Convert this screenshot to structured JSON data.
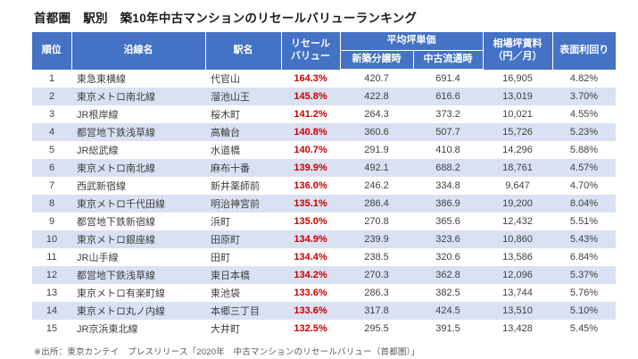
{
  "page_title": "首都圏　駅別　築10年中古マンションのリセールバリューランキング",
  "source_note": "※出所：東京カンテイ　プレスリリース「2020年　中古マンションのリセールバリュー（首都圏）」",
  "colors": {
    "header_bg": "#4472c4",
    "header_text": "#ffffff",
    "row_alt_bg": "#d9e1f2",
    "resale_red": "#c80000",
    "body_text": "#404040"
  },
  "table": {
    "headers": {
      "rank": "順位",
      "line": "沿線名",
      "station": "駅名",
      "resale_line1": "リセール",
      "resale_line2": "バリュー",
      "avg_tsubo_price": "平均坪単価",
      "new_sale": "新築分譲時",
      "used_market": "中古流通時",
      "rent_line1": "相場坪賃料",
      "rent_line2": "（円／月）",
      "yield": "表面利回り"
    }
  },
  "chart_data": {
    "type": "table",
    "title": "首都圏　駅別　築10年中古マンションのリセールバリューランキング",
    "columns": [
      "順位",
      "沿線名",
      "駅名",
      "リセールバリュー",
      "平均坪単価 新築分譲時",
      "平均坪単価 中古流通時",
      "相場坪賃料（円／月）",
      "表面利回り"
    ],
    "rows": [
      [
        "1",
        "東急東横線",
        "代官山",
        "164.3%",
        "420.7",
        "691.4",
        "16,905",
        "4.82%"
      ],
      [
        "2",
        "東京メトロ南北線",
        "溜池山王",
        "145.8%",
        "422.8",
        "616.6",
        "13,019",
        "3.70%"
      ],
      [
        "3",
        "JR根岸線",
        "桜木町",
        "141.2%",
        "264.3",
        "373.2",
        "10,021",
        "4.55%"
      ],
      [
        "4",
        "都営地下鉄浅草線",
        "高輪台",
        "140.8%",
        "360.6",
        "507.7",
        "15,726",
        "5.23%"
      ],
      [
        "5",
        "JR総武線",
        "水道橋",
        "140.7%",
        "291.9",
        "410.8",
        "14,296",
        "5.88%"
      ],
      [
        "6",
        "東京メトロ南北線",
        "麻布十番",
        "139.9%",
        "492.1",
        "688.2",
        "18,761",
        "4.57%"
      ],
      [
        "7",
        "西武新宿線",
        "新井薬師前",
        "136.0%",
        "246.2",
        "334.8",
        "9,647",
        "4.70%"
      ],
      [
        "8",
        "東京メトロ千代田線",
        "明治神宮前",
        "135.1%",
        "286.4",
        "386.9",
        "19,200",
        "8.04%"
      ],
      [
        "9",
        "都営地下鉄新宿線",
        "浜町",
        "135.0%",
        "270.8",
        "365.6",
        "12,432",
        "5.51%"
      ],
      [
        "10",
        "東京メトロ銀座線",
        "田原町",
        "134.9%",
        "239.9",
        "323.6",
        "10,860",
        "5.43%"
      ],
      [
        "11",
        "JR山手線",
        "田町",
        "134.4%",
        "238.5",
        "320.6",
        "13,586",
        "6.84%"
      ],
      [
        "12",
        "都営地下鉄浅草線",
        "東日本橋",
        "134.2%",
        "270.3",
        "362.8",
        "12,096",
        "5.37%"
      ],
      [
        "13",
        "東京メトロ有楽町線",
        "東池袋",
        "133.6%",
        "286.3",
        "382.5",
        "13,744",
        "5.76%"
      ],
      [
        "14",
        "東京メトロ丸ノ内線",
        "本郷三丁目",
        "133.6%",
        "317.8",
        "424.5",
        "13,510",
        "5.10%"
      ],
      [
        "15",
        "JR京浜東北線",
        "大井町",
        "132.5%",
        "295.5",
        "391.5",
        "13,428",
        "5.45%"
      ]
    ]
  }
}
